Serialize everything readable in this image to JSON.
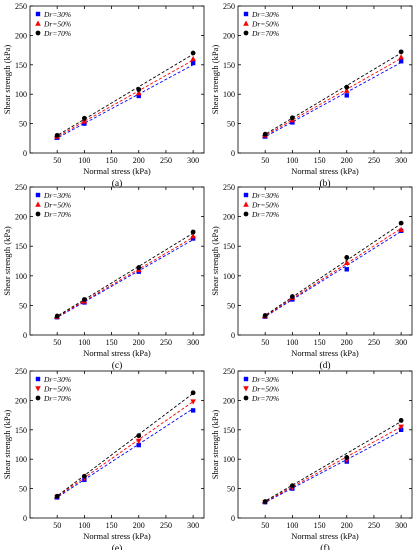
{
  "figure": {
    "panel_count": 6
  },
  "colors": {
    "blue": "#0000ff",
    "red": "#ff0000",
    "black": "#000000"
  },
  "legend_common": [
    "Dr=30%",
    "Dr=50%",
    "Dr=70%"
  ],
  "chart_data": [
    {
      "type": "scatter",
      "panel_label": "(a)",
      "xlabel": "Normal stress (kPa)",
      "ylabel": "Shear strength (kPa)",
      "xlim": [
        0,
        320
      ],
      "ylim": [
        0,
        250
      ],
      "xticks": [
        50,
        100,
        150,
        200,
        250,
        300
      ],
      "yticks": [
        0,
        50,
        100,
        150,
        200,
        250
      ],
      "legend": "top-left",
      "grid": false,
      "series": [
        {
          "name": "Dr=30%",
          "marker": "square",
          "color": "#0000ff",
          "x": [
            50,
            100,
            200,
            300
          ],
          "y": [
            26,
            50,
            97,
            153
          ],
          "fit": [
            [
              45,
              23
            ],
            [
              300,
              150
            ]
          ]
        },
        {
          "name": "Dr=50%",
          "marker": "triangle-up",
          "color": "#ff0000",
          "x": [
            50,
            100,
            200,
            300
          ],
          "y": [
            28,
            54,
            102,
            160
          ],
          "fit": [
            [
              45,
              25
            ],
            [
              300,
              158
            ]
          ]
        },
        {
          "name": "Dr=70%",
          "marker": "circle",
          "color": "#000000",
          "x": [
            50,
            100,
            200,
            300
          ],
          "y": [
            30,
            59,
            108,
            170
          ],
          "fit": [
            [
              45,
              27
            ],
            [
              300,
              168
            ]
          ]
        }
      ]
    },
    {
      "type": "scatter",
      "panel_label": "(b)",
      "xlabel": "Normal stress (kPa)",
      "ylabel": "Shear strength (kPa)",
      "xlim": [
        0,
        320
      ],
      "ylim": [
        0,
        250
      ],
      "xticks": [
        50,
        100,
        150,
        200,
        250,
        300
      ],
      "yticks": [
        0,
        50,
        100,
        150,
        200,
        250
      ],
      "legend": "top-left",
      "grid": false,
      "series": [
        {
          "name": "Dr=30%",
          "marker": "square",
          "color": "#0000ff",
          "x": [
            50,
            100,
            200,
            300
          ],
          "y": [
            28,
            52,
            98,
            156
          ],
          "fit": [
            [
              45,
              25
            ],
            [
              300,
              154
            ]
          ]
        },
        {
          "name": "Dr=50%",
          "marker": "triangle-up",
          "color": "#ff0000",
          "x": [
            50,
            100,
            200,
            300
          ],
          "y": [
            30,
            56,
            106,
            163
          ],
          "fit": [
            [
              45,
              27
            ],
            [
              300,
              161
            ]
          ]
        },
        {
          "name": "Dr=70%",
          "marker": "circle",
          "color": "#000000",
          "x": [
            50,
            100,
            200,
            300
          ],
          "y": [
            32,
            60,
            112,
            172
          ],
          "fit": [
            [
              45,
              29
            ],
            [
              300,
              170
            ]
          ]
        }
      ]
    },
    {
      "type": "scatter",
      "panel_label": "(c)",
      "xlabel": "Normal stress (kPa)",
      "ylabel": "Shear strength (kPa)",
      "xlim": [
        0,
        320
      ],
      "ylim": [
        0,
        250
      ],
      "xticks": [
        50,
        100,
        150,
        200,
        250,
        300
      ],
      "yticks": [
        0,
        50,
        100,
        150,
        200,
        250
      ],
      "legend": "top-left",
      "grid": false,
      "series": [
        {
          "name": "Dr=30%",
          "marker": "square",
          "color": "#0000ff",
          "x": [
            50,
            100,
            200,
            300
          ],
          "y": [
            30,
            55,
            107,
            163
          ],
          "fit": [
            [
              45,
              27
            ],
            [
              300,
              161
            ]
          ]
        },
        {
          "name": "Dr=50%",
          "marker": "triangle-up",
          "color": "#ff0000",
          "x": [
            50,
            100,
            200,
            300
          ],
          "y": [
            31,
            57,
            110,
            167
          ],
          "fit": [
            [
              45,
              28
            ],
            [
              300,
              165
            ]
          ]
        },
        {
          "name": "Dr=70%",
          "marker": "circle",
          "color": "#000000",
          "x": [
            50,
            100,
            200,
            300
          ],
          "y": [
            32,
            60,
            114,
            174
          ],
          "fit": [
            [
              45,
              29
            ],
            [
              300,
              172
            ]
          ]
        }
      ]
    },
    {
      "type": "scatter",
      "panel_label": "(d)",
      "xlabel": "Normal stress (kPa)",
      "ylabel": "Shear strength (kPa)",
      "xlim": [
        0,
        320
      ],
      "ylim": [
        0,
        250
      ],
      "xticks": [
        50,
        100,
        150,
        200,
        250,
        300
      ],
      "yticks": [
        0,
        50,
        100,
        150,
        200,
        250
      ],
      "legend": "top-left",
      "grid": false,
      "series": [
        {
          "name": "Dr=30%",
          "marker": "square",
          "color": "#0000ff",
          "x": [
            50,
            100,
            200,
            300
          ],
          "y": [
            31,
            60,
            111,
            176
          ],
          "fit": [
            [
              45,
              28
            ],
            [
              300,
              175
            ]
          ]
        },
        {
          "name": "Dr=50%",
          "marker": "triangle-up",
          "color": "#ff0000",
          "x": [
            50,
            100,
            200,
            300
          ],
          "y": [
            32,
            63,
            122,
            178
          ],
          "fit": [
            [
              45,
              29
            ],
            [
              300,
              180
            ]
          ]
        },
        {
          "name": "Dr=70%",
          "marker": "circle",
          "color": "#000000",
          "x": [
            50,
            100,
            200,
            300
          ],
          "y": [
            33,
            65,
            131,
            189
          ],
          "fit": [
            [
              45,
              30
            ],
            [
              300,
              188
            ]
          ]
        }
      ]
    },
    {
      "type": "scatter",
      "panel_label": "(e)",
      "xlabel": "Normal stress (kPa)",
      "ylabel": "Shear strength (kPa)",
      "xlim": [
        0,
        320
      ],
      "ylim": [
        0,
        250
      ],
      "xticks": [
        50,
        100,
        150,
        200,
        250,
        300
      ],
      "yticks": [
        0,
        50,
        100,
        150,
        200,
        250
      ],
      "legend": "top-left",
      "grid": false,
      "series": [
        {
          "name": "Dr=30%",
          "marker": "square",
          "color": "#0000ff",
          "x": [
            50,
            100,
            200,
            300
          ],
          "y": [
            35,
            65,
            124,
            183
          ],
          "fit": [
            [
              45,
              32
            ],
            [
              300,
              186
            ]
          ]
        },
        {
          "name": "Dr=50%",
          "marker": "triangle-down",
          "color": "#ff0000",
          "x": [
            50,
            100,
            200,
            300
          ],
          "y": [
            36,
            68,
            131,
            198
          ],
          "fit": [
            [
              45,
              33
            ],
            [
              300,
              198
            ]
          ]
        },
        {
          "name": "Dr=70%",
          "marker": "circle",
          "color": "#000000",
          "x": [
            50,
            100,
            200,
            300
          ],
          "y": [
            37,
            71,
            140,
            213
          ],
          "fit": [
            [
              45,
              34
            ],
            [
              300,
              212
            ]
          ]
        }
      ]
    },
    {
      "type": "scatter",
      "panel_label": "(f)",
      "xlabel": "Normal stress (kPa)",
      "ylabel": "Shear strength (kPa)",
      "xlim": [
        0,
        320
      ],
      "ylim": [
        0,
        250
      ],
      "xticks": [
        50,
        100,
        150,
        200,
        250,
        300
      ],
      "yticks": [
        0,
        50,
        100,
        150,
        200,
        250
      ],
      "legend": "top-left",
      "grid": false,
      "series": [
        {
          "name": "Dr=30%",
          "marker": "square",
          "color": "#0000ff",
          "x": [
            50,
            100,
            200,
            300
          ],
          "y": [
            27,
            50,
            96,
            150
          ],
          "fit": [
            [
              45,
              24
            ],
            [
              300,
              148
            ]
          ]
        },
        {
          "name": "Dr=50%",
          "marker": "triangle-down",
          "color": "#ff0000",
          "x": [
            50,
            100,
            200,
            300
          ],
          "y": [
            27,
            52,
            99,
            155
          ],
          "fit": [
            [
              45,
              25
            ],
            [
              300,
              155
            ]
          ]
        },
        {
          "name": "Dr=70%",
          "marker": "circle",
          "color": "#000000",
          "x": [
            50,
            100,
            200,
            300
          ],
          "y": [
            28,
            55,
            103,
            166
          ],
          "fit": [
            [
              45,
              26
            ],
            [
              300,
              164
            ]
          ]
        }
      ]
    }
  ]
}
